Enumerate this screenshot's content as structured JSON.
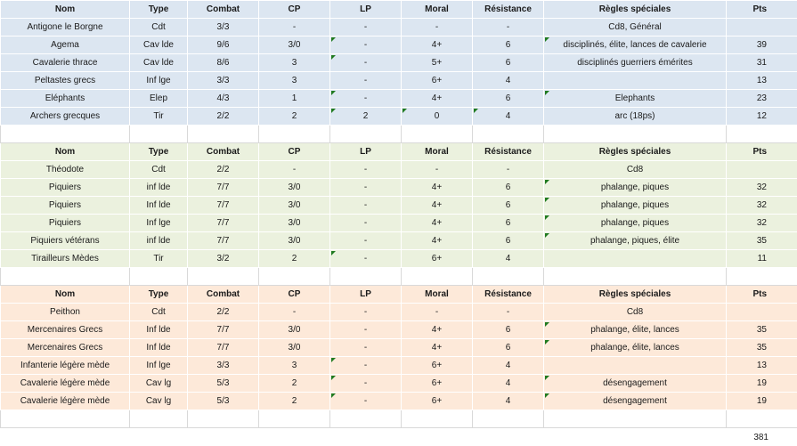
{
  "headers": [
    "Nom",
    "Type",
    "Combat",
    "CP",
    "LP",
    "Moral",
    "Résistance",
    "Règles spéciales",
    "Pts"
  ],
  "sections": [
    {
      "theme": "blue",
      "rows": [
        [
          "Antigone le Borgne",
          "Cdt",
          "3/3",
          "-",
          "-",
          "-",
          "-",
          "Cd8, Général",
          ""
        ],
        [
          "Agema",
          "Cav lde",
          "9/6",
          "3/0",
          "-",
          "4+",
          "6",
          "disciplinés, élite, lances de cavalerie",
          "39"
        ],
        [
          "Cavalerie thrace",
          "Cav lde",
          "8/6",
          "3",
          "-",
          "5+",
          "6",
          "disciplinés  guerriers émérites",
          "31"
        ],
        [
          "Peltastes grecs",
          "Inf lge",
          "3/3",
          "3",
          "-",
          "6+",
          "4",
          "",
          "13"
        ],
        [
          "Eléphants",
          "Elep",
          "4/3",
          "1",
          "-",
          "4+",
          "6",
          "Elephants",
          "23"
        ],
        [
          "Archers grecques",
          "Tir",
          "2/2",
          "2",
          "2",
          "0",
          "4",
          "arc (18ps)",
          "12"
        ]
      ],
      "flags": [
        [],
        [
          4,
          7
        ],
        [
          4
        ],
        [],
        [
          4,
          7
        ],
        [
          4,
          5,
          6
        ]
      ]
    },
    {
      "theme": "green",
      "rows": [
        [
          "Théodote",
          "Cdt",
          "2/2",
          "-",
          "-",
          "-",
          "-",
          "Cd8",
          ""
        ],
        [
          "Piquiers",
          "inf lde",
          "7/7",
          "3/0",
          "-",
          "4+",
          "6",
          "phalange, piques",
          "32"
        ],
        [
          "Piquiers",
          "Inf lde",
          "7/7",
          "3/0",
          "-",
          "4+",
          "6",
          "phalange, piques",
          "32"
        ],
        [
          "Piquiers",
          "Inf lge",
          "7/7",
          "3/0",
          "-",
          "4+",
          "6",
          "phalange, piques",
          "32"
        ],
        [
          "Piquiers vétérans",
          "inf lde",
          "7/7",
          "3/0",
          "-",
          "4+",
          "6",
          "phalange, piques, élite",
          "35"
        ],
        [
          "Tirailleurs Mèdes",
          "Tir",
          "3/2",
          "2",
          "-",
          "6+",
          "4",
          "",
          "11"
        ]
      ],
      "flags": [
        [],
        [
          7
        ],
        [
          7
        ],
        [
          7
        ],
        [
          7
        ],
        [
          4
        ]
      ]
    },
    {
      "theme": "orange",
      "rows": [
        [
          "Peithon",
          "Cdt",
          "2/2",
          "-",
          "-",
          "-",
          "-",
          "Cd8",
          ""
        ],
        [
          "Mercenaires Grecs",
          "Inf lde",
          "7/7",
          "3/0",
          "-",
          "4+",
          "6",
          "phalange, élite, lances",
          "35"
        ],
        [
          "Mercenaires Grecs",
          "Inf lde",
          "7/7",
          "3/0",
          "-",
          "4+",
          "6",
          "phalange, élite, lances",
          "35"
        ],
        [
          "Infanterie légère mède",
          "Inf lge",
          "3/3",
          "3",
          "-",
          "6+",
          "4",
          "",
          "13"
        ],
        [
          "Cavalerie légère mède",
          "Cav lg",
          "5/3",
          "2",
          "-",
          "6+",
          "4",
          "désengagement",
          "19"
        ],
        [
          "Cavalerie légère mède",
          "Cav lg",
          "5/3",
          "2",
          "-",
          "6+",
          "4",
          "désengagement",
          "19"
        ]
      ],
      "flags": [
        [],
        [
          7
        ],
        [
          7
        ],
        [
          4
        ],
        [
          4,
          7
        ],
        [
          4,
          7
        ]
      ]
    }
  ],
  "total": "381"
}
